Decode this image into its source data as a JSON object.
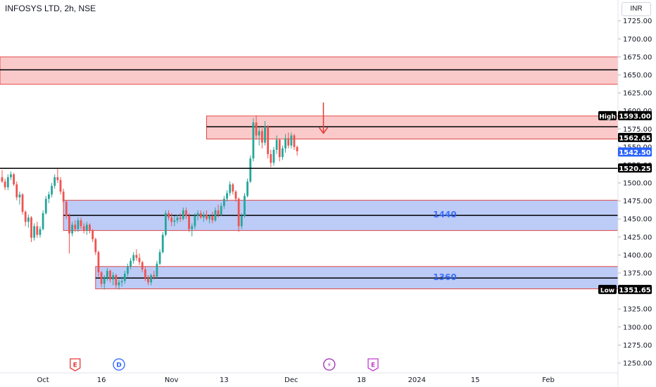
{
  "header": {
    "title": "INFOSYS LTD, 2h, NSE",
    "currency": "INR"
  },
  "colors": {
    "up": "#26a69a",
    "down": "#ef5350",
    "supply_zone_fill": "#f7a9a9",
    "demand_zone_fill": "#aebff5",
    "zone_border": "#e04848",
    "level_label": "#2962ff",
    "last_price_badge": "#2962ff",
    "arrow": "#e53935"
  },
  "chart_data": {
    "type": "candlestick",
    "title": "INFOSYS LTD, 2h, NSE",
    "y_axis": {
      "min": 1250,
      "max": 1725,
      "ticks": [
        1250,
        1275,
        1300,
        1325,
        1350,
        1375,
        1400,
        1425,
        1450,
        1475,
        1500,
        1525,
        1550,
        1575,
        1600,
        1625,
        1650,
        1675,
        1700,
        1725
      ],
      "tick_labels": [
        "1250.00",
        "1275.00",
        "1300.00",
        "1325.00",
        "1350.00",
        "1375.00",
        "1400.00",
        "1425.00",
        "1450.00",
        "1475.00",
        "1500.00",
        "1525.00",
        "1550.00",
        "1575.00",
        "1600.00",
        "1625.00",
        "1650.00",
        "1675.00",
        "1700.00",
        "1725.00"
      ]
    },
    "x_axis": {
      "labels": [
        {
          "text": "Oct",
          "bar": 14
        },
        {
          "text": "16",
          "bar": 34
        },
        {
          "text": "Nov",
          "bar": 58
        },
        {
          "text": "13",
          "bar": 76
        },
        {
          "text": "Dec",
          "bar": 99
        },
        {
          "text": "18",
          "bar": 123
        },
        {
          "text": "2024",
          "bar": 142
        },
        {
          "text": "15",
          "bar": 162
        },
        {
          "text": "Feb",
          "bar": 187
        }
      ]
    },
    "candles": [
      [
        1508,
        1518,
        1500,
        1502
      ],
      [
        1502,
        1506,
        1490,
        1494
      ],
      [
        1494,
        1512,
        1490,
        1508
      ],
      [
        1508,
        1516,
        1504,
        1512
      ],
      [
        1512,
        1514,
        1496,
        1498
      ],
      [
        1498,
        1502,
        1476,
        1480
      ],
      [
        1480,
        1488,
        1470,
        1484
      ],
      [
        1484,
        1486,
        1456,
        1460
      ],
      [
        1460,
        1462,
        1440,
        1446
      ],
      [
        1446,
        1456,
        1438,
        1452
      ],
      [
        1452,
        1454,
        1418,
        1424
      ],
      [
        1424,
        1444,
        1420,
        1440
      ],
      [
        1440,
        1446,
        1424,
        1428
      ],
      [
        1428,
        1440,
        1424,
        1436
      ],
      [
        1436,
        1462,
        1434,
        1458
      ],
      [
        1458,
        1482,
        1456,
        1478
      ],
      [
        1478,
        1488,
        1472,
        1484
      ],
      [
        1484,
        1500,
        1480,
        1496
      ],
      [
        1496,
        1512,
        1492,
        1508
      ],
      [
        1508,
        1520,
        1500,
        1504
      ],
      [
        1504,
        1508,
        1484,
        1488
      ],
      [
        1488,
        1492,
        1470,
        1474
      ],
      [
        1474,
        1476,
        1450,
        1454
      ],
      [
        1454,
        1458,
        1402,
        1430
      ],
      [
        1430,
        1446,
        1426,
        1442
      ],
      [
        1442,
        1448,
        1432,
        1436
      ],
      [
        1436,
        1452,
        1432,
        1448
      ],
      [
        1448,
        1452,
        1436,
        1440
      ],
      [
        1440,
        1444,
        1430,
        1434
      ],
      [
        1434,
        1446,
        1428,
        1442
      ],
      [
        1442,
        1444,
        1430,
        1434
      ],
      [
        1434,
        1436,
        1418,
        1422
      ],
      [
        1422,
        1424,
        1400,
        1404
      ],
      [
        1404,
        1406,
        1370,
        1376
      ],
      [
        1376,
        1378,
        1355,
        1360
      ],
      [
        1360,
        1372,
        1352,
        1368
      ],
      [
        1368,
        1382,
        1364,
        1378
      ],
      [
        1378,
        1380,
        1362,
        1366
      ],
      [
        1366,
        1376,
        1358,
        1372
      ],
      [
        1372,
        1374,
        1354,
        1358
      ],
      [
        1358,
        1366,
        1352,
        1362
      ],
      [
        1362,
        1370,
        1356,
        1364
      ],
      [
        1364,
        1378,
        1360,
        1374
      ],
      [
        1374,
        1388,
        1370,
        1384
      ],
      [
        1384,
        1396,
        1380,
        1392
      ],
      [
        1392,
        1404,
        1388,
        1400
      ],
      [
        1400,
        1408,
        1392,
        1396
      ],
      [
        1396,
        1402,
        1386,
        1390
      ],
      [
        1390,
        1392,
        1376,
        1380
      ],
      [
        1380,
        1384,
        1364,
        1368
      ],
      [
        1368,
        1372,
        1358,
        1362
      ],
      [
        1362,
        1374,
        1358,
        1372
      ],
      [
        1372,
        1378,
        1366,
        1370
      ],
      [
        1370,
        1392,
        1368,
        1388
      ],
      [
        1388,
        1408,
        1386,
        1404
      ],
      [
        1404,
        1432,
        1402,
        1428
      ],
      [
        1428,
        1462,
        1426,
        1458
      ],
      [
        1458,
        1462,
        1448,
        1452
      ],
      [
        1452,
        1458,
        1440,
        1446
      ],
      [
        1446,
        1454,
        1440,
        1448
      ],
      [
        1448,
        1456,
        1444,
        1452
      ],
      [
        1452,
        1458,
        1446,
        1450
      ],
      [
        1450,
        1466,
        1448,
        1462
      ],
      [
        1462,
        1466,
        1450,
        1454
      ],
      [
        1454,
        1458,
        1432,
        1436
      ],
      [
        1436,
        1444,
        1426,
        1440
      ],
      [
        1440,
        1458,
        1436,
        1454
      ],
      [
        1454,
        1462,
        1448,
        1458
      ],
      [
        1458,
        1462,
        1450,
        1452
      ],
      [
        1452,
        1460,
        1446,
        1456
      ],
      [
        1456,
        1462,
        1448,
        1450
      ],
      [
        1450,
        1456,
        1444,
        1454
      ],
      [
        1454,
        1460,
        1444,
        1448
      ],
      [
        1448,
        1466,
        1446,
        1462
      ],
      [
        1462,
        1470,
        1452,
        1456
      ],
      [
        1456,
        1472,
        1454,
        1468
      ],
      [
        1468,
        1482,
        1464,
        1478
      ],
      [
        1478,
        1490,
        1474,
        1486
      ],
      [
        1486,
        1502,
        1482,
        1498
      ],
      [
        1498,
        1500,
        1484,
        1488
      ],
      [
        1488,
        1490,
        1474,
        1478
      ],
      [
        1478,
        1480,
        1432,
        1440
      ],
      [
        1440,
        1458,
        1436,
        1454
      ],
      [
        1454,
        1486,
        1452,
        1482
      ],
      [
        1482,
        1506,
        1480,
        1502
      ],
      [
        1502,
        1538,
        1500,
        1534
      ],
      [
        1534,
        1590,
        1530,
        1584
      ],
      [
        1584,
        1594,
        1560,
        1566
      ],
      [
        1566,
        1578,
        1552,
        1572
      ],
      [
        1572,
        1576,
        1548,
        1556
      ],
      [
        1556,
        1586,
        1552,
        1578
      ],
      [
        1578,
        1580,
        1534,
        1540
      ],
      [
        1540,
        1546,
        1522,
        1528
      ],
      [
        1528,
        1550,
        1524,
        1546
      ],
      [
        1546,
        1566,
        1540,
        1560
      ],
      [
        1560,
        1562,
        1530,
        1536
      ],
      [
        1536,
        1552,
        1532,
        1548
      ],
      [
        1548,
        1568,
        1542,
        1562
      ],
      [
        1562,
        1570,
        1548,
        1552
      ],
      [
        1552,
        1570,
        1548,
        1566
      ],
      [
        1566,
        1568,
        1546,
        1550
      ],
      [
        1550,
        1552,
        1538,
        1544
      ]
    ],
    "zones": [
      {
        "type": "supply",
        "top": 1675,
        "bottom": 1637,
        "mid": 1657,
        "start_bar": -30
      },
      {
        "type": "supply",
        "top": 1593,
        "bottom": 1561,
        "mid": 1578,
        "start_bar": 70
      },
      {
        "type": "demand",
        "top": 1476,
        "bottom": 1434,
        "mid": 1455,
        "start_bar": 21,
        "label": "1440"
      },
      {
        "type": "demand",
        "top": 1384,
        "bottom": 1353,
        "mid": 1368,
        "start_bar": 32,
        "label": "1360"
      }
    ],
    "horizontal_lines": [
      {
        "y": 1520.25,
        "start_bar": -30
      }
    ],
    "price_labels": [
      {
        "tag": "High",
        "value": 1593.0,
        "text": "1593.00"
      },
      {
        "tag": "",
        "value": 1562.65,
        "text": "1562.65"
      },
      {
        "tag": "",
        "value": 1542.5,
        "text": "1542.50",
        "current": true
      },
      {
        "tag": "",
        "value": 1520.25,
        "text": "1520.25"
      },
      {
        "tag": "Low",
        "value": 1351.65,
        "text": "1351.65"
      }
    ],
    "events": [
      {
        "glyph": "E",
        "bar": 25,
        "color": "#e53935",
        "shape": "square"
      },
      {
        "glyph": "D",
        "bar": 40,
        "color": "#2962ff",
        "shape": "circle"
      },
      {
        "glyph": "⚡",
        "bar": 112,
        "color": "#9c27b0",
        "shape": "circle"
      },
      {
        "glyph": "E",
        "bar": 127,
        "color": "#c13ccf",
        "shape": "square"
      }
    ],
    "arrow": {
      "bar": 110,
      "from_value": 1600,
      "to_value": 1570
    }
  }
}
